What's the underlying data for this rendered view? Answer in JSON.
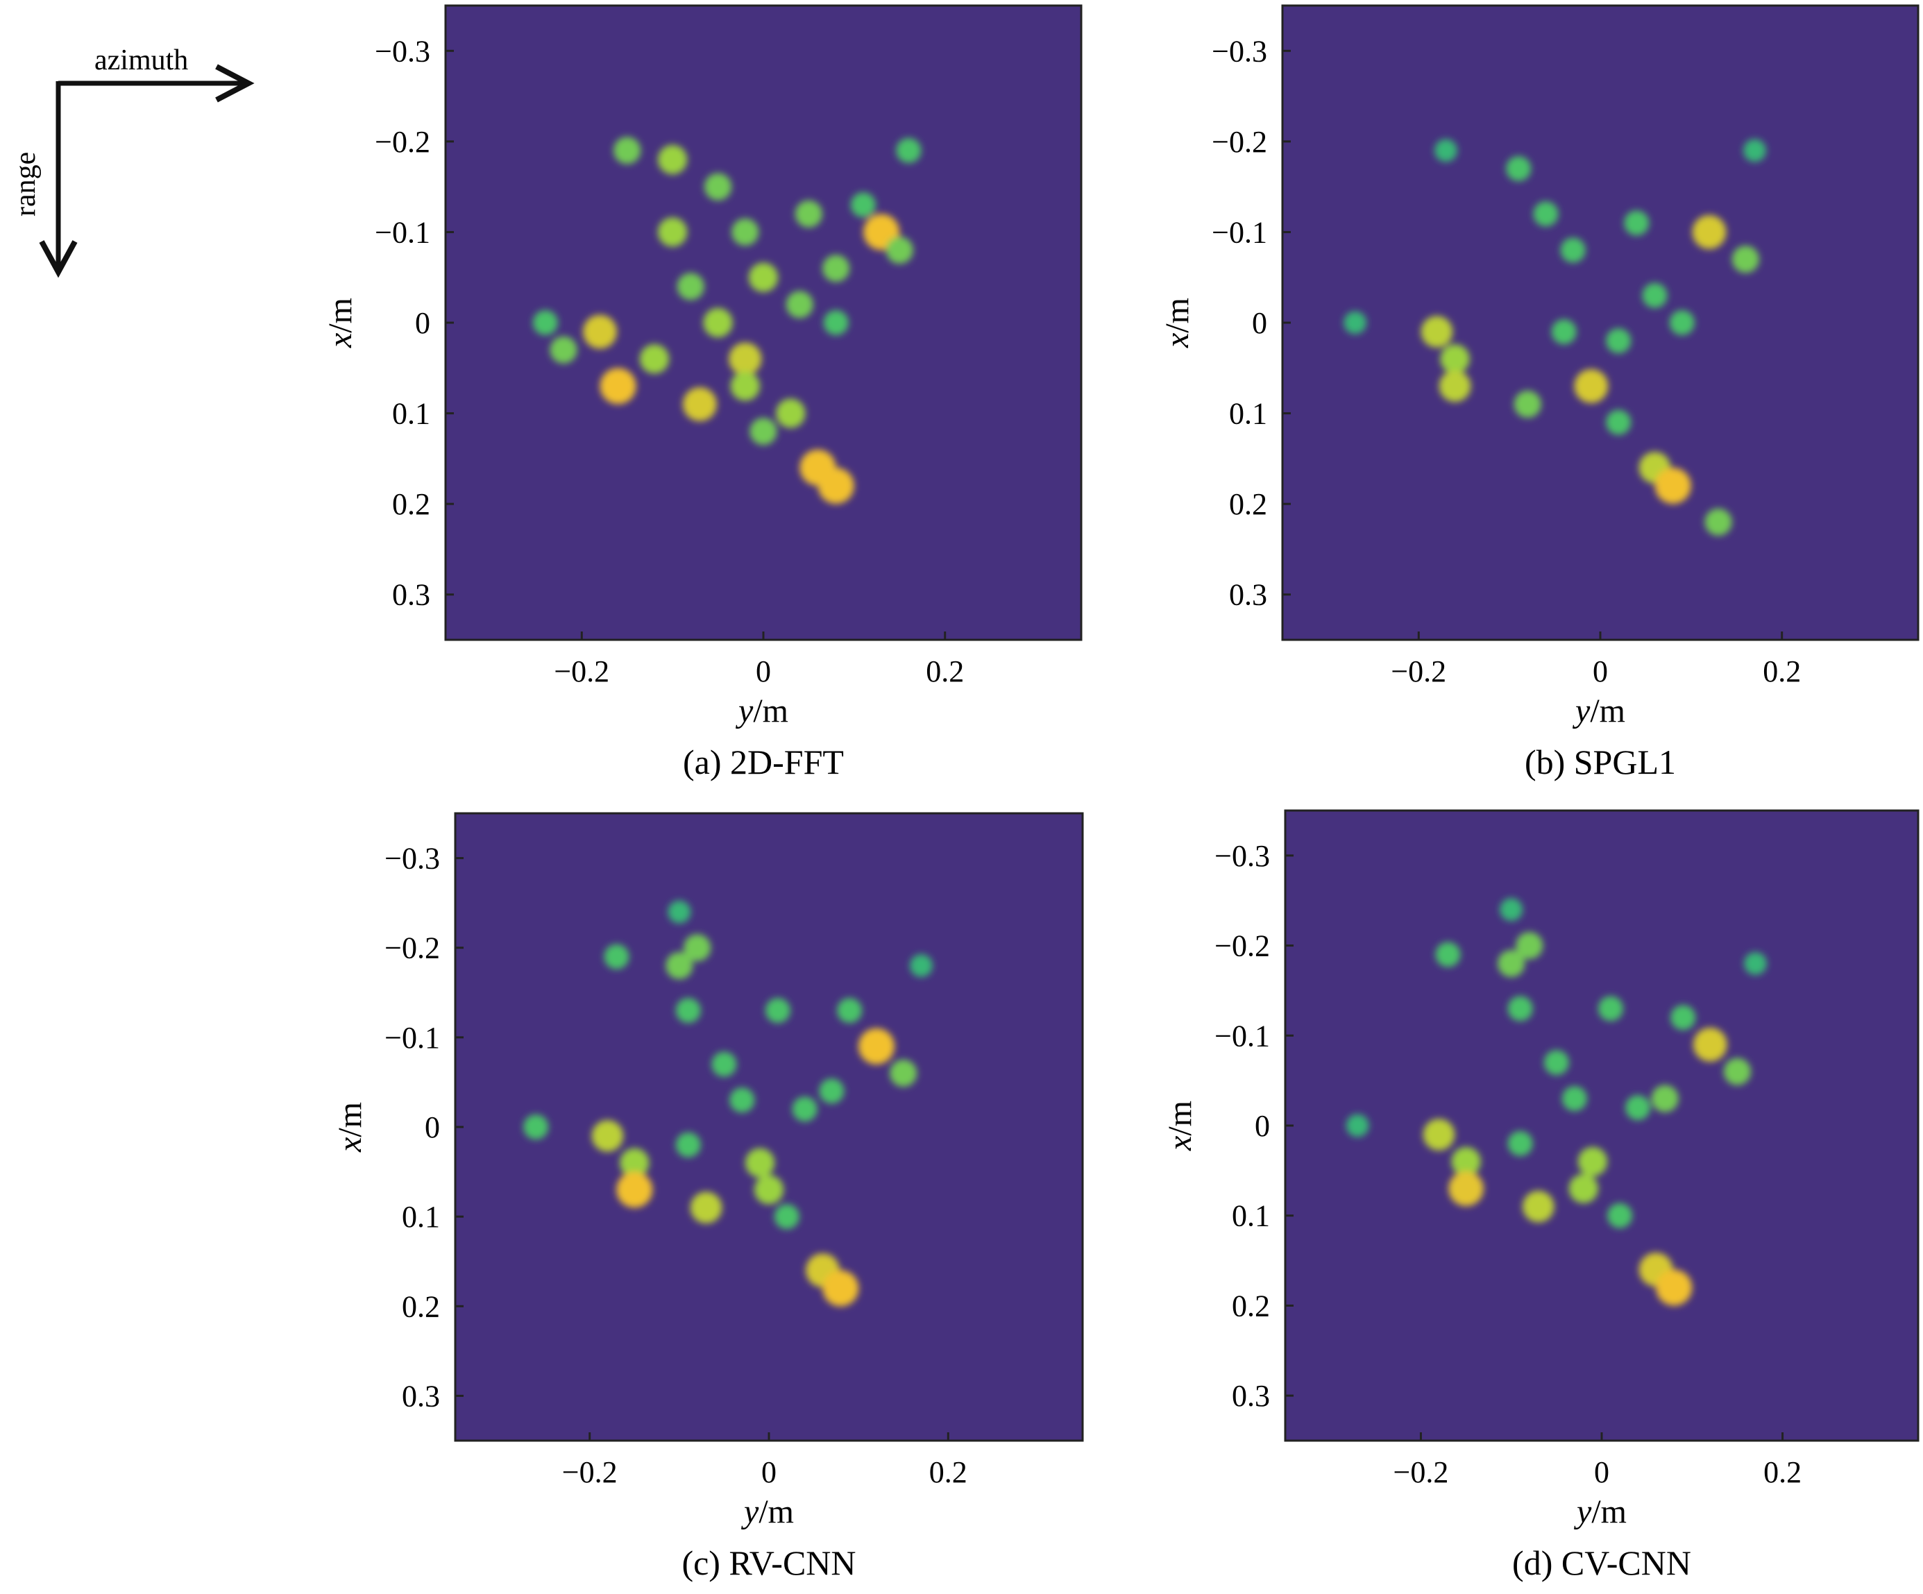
{
  "orientation": {
    "azimuth_label": "azimuth",
    "range_label": "range"
  },
  "chart_data": [
    {
      "type": "heatmap",
      "caption": "(a) 2D-FFT",
      "xlabel": "y/m",
      "ylabel": "x/m",
      "xlim": [
        -0.35,
        0.35
      ],
      "ylim": [
        -0.35,
        0.35
      ],
      "x_ticks": [
        -0.2,
        0,
        0.2
      ],
      "x_tick_labels": [
        "−0.2",
        "0",
        "0.2"
      ],
      "y_ticks": [
        -0.3,
        -0.2,
        -0.1,
        0,
        0.1,
        0.2,
        0.3
      ],
      "y_tick_labels": [
        "−0.3",
        "−0.2",
        "−0.1",
        "0",
        "0.1",
        "0.2",
        "0.3"
      ],
      "y_reversed": true,
      "background_color": "#46317e",
      "colormap": [
        "#46317e",
        "#3a6aa0",
        "#2a9a8c",
        "#3cbf6f",
        "#a8d53a",
        "#f2c12e"
      ],
      "points": [
        {
          "x": -0.16,
          "y": 0.07,
          "v": 1.0
        },
        {
          "x": -0.18,
          "y": 0.01,
          "v": 0.9
        },
        {
          "x": -0.07,
          "y": 0.09,
          "v": 0.9
        },
        {
          "x": -0.02,
          "y": 0.04,
          "v": 0.85
        },
        {
          "x": -0.02,
          "y": 0.07,
          "v": 0.7
        },
        {
          "x": 0.06,
          "y": 0.16,
          "v": 1.0
        },
        {
          "x": 0.08,
          "y": 0.18,
          "v": 1.0
        },
        {
          "x": 0.13,
          "y": -0.1,
          "v": 1.0
        },
        {
          "x": 0.16,
          "y": -0.19,
          "v": 0.5
        },
        {
          "x": -0.15,
          "y": -0.19,
          "v": 0.6
        },
        {
          "x": -0.1,
          "y": -0.18,
          "v": 0.7
        },
        {
          "x": -0.05,
          "y": -0.15,
          "v": 0.6
        },
        {
          "x": -0.1,
          "y": -0.1,
          "v": 0.7
        },
        {
          "x": -0.02,
          "y": -0.1,
          "v": 0.6
        },
        {
          "x": 0.05,
          "y": -0.12,
          "v": 0.6
        },
        {
          "x": 0.08,
          "y": -0.06,
          "v": 0.6
        },
        {
          "x": 0.0,
          "y": -0.05,
          "v": 0.7
        },
        {
          "x": -0.08,
          "y": -0.04,
          "v": 0.6
        },
        {
          "x": 0.04,
          "y": -0.02,
          "v": 0.6
        },
        {
          "x": 0.08,
          "y": 0.0,
          "v": 0.5
        },
        {
          "x": -0.05,
          "y": 0.0,
          "v": 0.7
        },
        {
          "x": -0.12,
          "y": 0.04,
          "v": 0.7
        },
        {
          "x": -0.24,
          "y": 0.0,
          "v": 0.5
        },
        {
          "x": -0.22,
          "y": 0.03,
          "v": 0.6
        },
        {
          "x": 0.0,
          "y": 0.12,
          "v": 0.6
        },
        {
          "x": 0.03,
          "y": 0.1,
          "v": 0.7
        },
        {
          "x": 0.11,
          "y": -0.13,
          "v": 0.5
        },
        {
          "x": 0.15,
          "y": -0.08,
          "v": 0.6
        }
      ]
    },
    {
      "type": "heatmap",
      "caption": "(b) SPGL1",
      "xlabel": "y/m",
      "ylabel": "x/m",
      "xlim": [
        -0.35,
        0.35
      ],
      "ylim": [
        -0.35,
        0.35
      ],
      "x_ticks": [
        -0.2,
        0,
        0.2
      ],
      "x_tick_labels": [
        "−0.2",
        "0",
        "0.2"
      ],
      "y_ticks": [
        -0.3,
        -0.2,
        -0.1,
        0,
        0.1,
        0.2,
        0.3
      ],
      "y_tick_labels": [
        "−0.3",
        "−0.2",
        "−0.1",
        "0",
        "0.1",
        "0.2",
        "0.3"
      ],
      "y_reversed": true,
      "background_color": "#46317e",
      "colormap": [
        "#46317e",
        "#3a6aa0",
        "#2a9a8c",
        "#3cbf6f",
        "#a8d53a",
        "#f2c12e"
      ],
      "points": [
        {
          "x": -0.27,
          "y": 0.0,
          "v": 0.4
        },
        {
          "x": -0.18,
          "y": 0.01,
          "v": 0.8
        },
        {
          "x": -0.16,
          "y": 0.04,
          "v": 0.7
        },
        {
          "x": -0.16,
          "y": 0.07,
          "v": 0.8
        },
        {
          "x": -0.08,
          "y": 0.09,
          "v": 0.6
        },
        {
          "x": -0.01,
          "y": 0.07,
          "v": 0.9
        },
        {
          "x": 0.06,
          "y": 0.16,
          "v": 0.8
        },
        {
          "x": 0.08,
          "y": 0.18,
          "v": 1.0
        },
        {
          "x": 0.13,
          "y": 0.22,
          "v": 0.6
        },
        {
          "x": 0.12,
          "y": -0.1,
          "v": 0.9
        },
        {
          "x": 0.16,
          "y": -0.07,
          "v": 0.6
        },
        {
          "x": -0.17,
          "y": -0.19,
          "v": 0.4
        },
        {
          "x": -0.09,
          "y": -0.17,
          "v": 0.5
        },
        {
          "x": -0.06,
          "y": -0.12,
          "v": 0.5
        },
        {
          "x": -0.03,
          "y": -0.08,
          "v": 0.5
        },
        {
          "x": 0.04,
          "y": -0.11,
          "v": 0.5
        },
        {
          "x": 0.06,
          "y": -0.03,
          "v": 0.5
        },
        {
          "x": -0.04,
          "y": 0.01,
          "v": 0.5
        },
        {
          "x": 0.02,
          "y": 0.02,
          "v": 0.5
        },
        {
          "x": 0.09,
          "y": 0.0,
          "v": 0.5
        },
        {
          "x": 0.02,
          "y": 0.11,
          "v": 0.5
        },
        {
          "x": 0.17,
          "y": -0.19,
          "v": 0.4
        }
      ]
    },
    {
      "type": "heatmap",
      "caption": "(c) RV-CNN",
      "xlabel": "y/m",
      "ylabel": "x/m",
      "xlim": [
        -0.35,
        0.35
      ],
      "ylim": [
        -0.35,
        0.35
      ],
      "x_ticks": [
        -0.2,
        0,
        0.2
      ],
      "x_tick_labels": [
        "−0.2",
        "0",
        "0.2"
      ],
      "y_ticks": [
        -0.3,
        -0.2,
        -0.1,
        0,
        0.1,
        0.2,
        0.3
      ],
      "y_tick_labels": [
        "−0.3",
        "−0.2",
        "−0.1",
        "0",
        "0.1",
        "0.2",
        "0.3"
      ],
      "y_reversed": true,
      "background_color": "#46317e",
      "colormap": [
        "#46317e",
        "#3a6aa0",
        "#2a9a8c",
        "#3cbf6f",
        "#a8d53a",
        "#f2c12e"
      ],
      "points": [
        {
          "x": -0.26,
          "y": 0.0,
          "v": 0.5
        },
        {
          "x": -0.18,
          "y": 0.01,
          "v": 0.8
        },
        {
          "x": -0.15,
          "y": 0.04,
          "v": 0.7
        },
        {
          "x": -0.15,
          "y": 0.07,
          "v": 1.0
        },
        {
          "x": -0.07,
          "y": 0.09,
          "v": 0.8
        },
        {
          "x": -0.01,
          "y": 0.04,
          "v": 0.7
        },
        {
          "x": 0.0,
          "y": 0.07,
          "v": 0.7
        },
        {
          "x": 0.06,
          "y": 0.16,
          "v": 0.9
        },
        {
          "x": 0.08,
          "y": 0.18,
          "v": 1.0
        },
        {
          "x": 0.12,
          "y": -0.09,
          "v": 1.0
        },
        {
          "x": 0.15,
          "y": -0.06,
          "v": 0.6
        },
        {
          "x": -0.17,
          "y": -0.19,
          "v": 0.5
        },
        {
          "x": -0.1,
          "y": -0.18,
          "v": 0.6
        },
        {
          "x": -0.08,
          "y": -0.2,
          "v": 0.6
        },
        {
          "x": -0.09,
          "y": -0.13,
          "v": 0.5
        },
        {
          "x": -0.05,
          "y": -0.07,
          "v": 0.5
        },
        {
          "x": 0.01,
          "y": -0.13,
          "v": 0.5
        },
        {
          "x": 0.09,
          "y": -0.13,
          "v": 0.5
        },
        {
          "x": 0.07,
          "y": -0.04,
          "v": 0.5
        },
        {
          "x": -0.03,
          "y": -0.03,
          "v": 0.5
        },
        {
          "x": 0.04,
          "y": -0.02,
          "v": 0.5
        },
        {
          "x": -0.09,
          "y": 0.02,
          "v": 0.5
        },
        {
          "x": 0.02,
          "y": 0.1,
          "v": 0.5
        },
        {
          "x": 0.17,
          "y": -0.18,
          "v": 0.4
        },
        {
          "x": -0.1,
          "y": -0.24,
          "v": 0.4
        }
      ]
    },
    {
      "type": "heatmap",
      "caption": "(d) CV-CNN",
      "xlabel": "y/m",
      "ylabel": "x/m",
      "xlim": [
        -0.35,
        0.35
      ],
      "ylim": [
        -0.35,
        0.35
      ],
      "x_ticks": [
        -0.2,
        0,
        0.2
      ],
      "x_tick_labels": [
        "−0.2",
        "0",
        "0.2"
      ],
      "y_ticks": [
        -0.3,
        -0.2,
        -0.1,
        0,
        0.1,
        0.2,
        0.3
      ],
      "y_tick_labels": [
        "−0.3",
        "−0.2",
        "−0.1",
        "0",
        "0.1",
        "0.2",
        "0.3"
      ],
      "y_reversed": true,
      "background_color": "#46317e",
      "colormap": [
        "#46317e",
        "#3a6aa0",
        "#2a9a8c",
        "#3cbf6f",
        "#a8d53a",
        "#f2c12e"
      ],
      "points": [
        {
          "x": -0.27,
          "y": 0.0,
          "v": 0.4
        },
        {
          "x": -0.18,
          "y": 0.01,
          "v": 0.8
        },
        {
          "x": -0.15,
          "y": 0.04,
          "v": 0.7
        },
        {
          "x": -0.15,
          "y": 0.07,
          "v": 0.95
        },
        {
          "x": -0.07,
          "y": 0.09,
          "v": 0.8
        },
        {
          "x": -0.01,
          "y": 0.04,
          "v": 0.7
        },
        {
          "x": -0.02,
          "y": 0.07,
          "v": 0.7
        },
        {
          "x": 0.06,
          "y": 0.16,
          "v": 0.9
        },
        {
          "x": 0.08,
          "y": 0.18,
          "v": 1.0
        },
        {
          "x": 0.12,
          "y": -0.09,
          "v": 0.9
        },
        {
          "x": 0.15,
          "y": -0.06,
          "v": 0.6
        },
        {
          "x": -0.17,
          "y": -0.19,
          "v": 0.5
        },
        {
          "x": -0.1,
          "y": -0.18,
          "v": 0.6
        },
        {
          "x": -0.08,
          "y": -0.2,
          "v": 0.6
        },
        {
          "x": -0.09,
          "y": -0.13,
          "v": 0.5
        },
        {
          "x": -0.05,
          "y": -0.07,
          "v": 0.5
        },
        {
          "x": 0.01,
          "y": -0.13,
          "v": 0.5
        },
        {
          "x": 0.09,
          "y": -0.12,
          "v": 0.5
        },
        {
          "x": 0.07,
          "y": -0.03,
          "v": 0.6
        },
        {
          "x": -0.03,
          "y": -0.03,
          "v": 0.5
        },
        {
          "x": 0.04,
          "y": -0.02,
          "v": 0.5
        },
        {
          "x": -0.09,
          "y": 0.02,
          "v": 0.5
        },
        {
          "x": 0.02,
          "y": 0.1,
          "v": 0.5
        },
        {
          "x": 0.17,
          "y": -0.18,
          "v": 0.4
        },
        {
          "x": -0.1,
          "y": -0.24,
          "v": 0.4
        }
      ]
    }
  ]
}
